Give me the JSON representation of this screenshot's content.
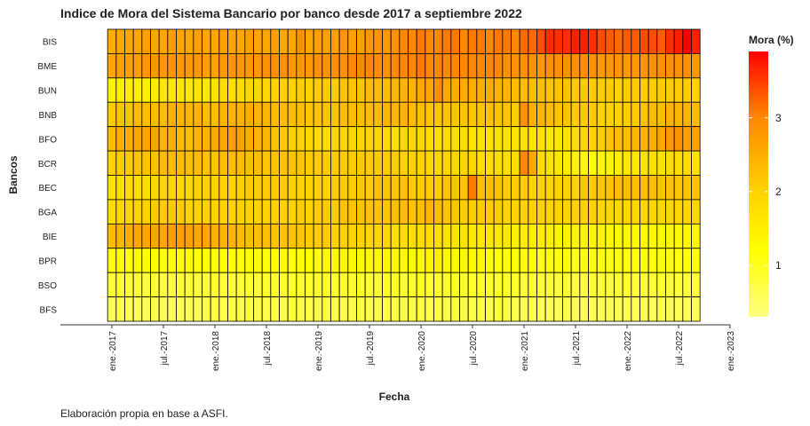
{
  "chart_data": {
    "type": "heatmap",
    "title": "Indice de Mora del Sistema Bancario por banco desde 2017 a septiembre 2022",
    "x_label": "Fecha",
    "y_label": "Bancos",
    "caption": "Elaboración propia en base a ASFI.",
    "legend_title": "Mora (%)",
    "x": [
      "2017-01",
      "2017-02",
      "2017-03",
      "2017-04",
      "2017-05",
      "2017-06",
      "2017-07",
      "2017-08",
      "2017-09",
      "2017-10",
      "2017-11",
      "2017-12",
      "2018-01",
      "2018-02",
      "2018-03",
      "2018-04",
      "2018-05",
      "2018-06",
      "2018-07",
      "2018-08",
      "2018-09",
      "2018-10",
      "2018-11",
      "2018-12",
      "2019-01",
      "2019-02",
      "2019-03",
      "2019-04",
      "2019-05",
      "2019-06",
      "2019-07",
      "2019-08",
      "2019-09",
      "2019-10",
      "2019-11",
      "2019-12",
      "2020-01",
      "2020-02",
      "2020-03",
      "2020-04",
      "2020-05",
      "2020-06",
      "2020-07",
      "2020-08",
      "2020-09",
      "2020-10",
      "2020-11",
      "2020-12",
      "2021-01",
      "2021-02",
      "2021-03",
      "2021-04",
      "2021-05",
      "2021-06",
      "2021-07",
      "2021-08",
      "2021-09",
      "2021-10",
      "2021-11",
      "2021-12",
      "2022-01",
      "2022-02",
      "2022-03",
      "2022-04",
      "2022-05",
      "2022-06",
      "2022-07",
      "2022-08",
      "2022-09"
    ],
    "xlim": [
      "2016-07",
      "2023-01"
    ],
    "xticks": [
      {
        "value": "2017-01",
        "label": "ene.-2017"
      },
      {
        "value": "2017-07",
        "label": "jul.-2017"
      },
      {
        "value": "2018-01",
        "label": "ene.-2018"
      },
      {
        "value": "2018-07",
        "label": "jul.-2018"
      },
      {
        "value": "2019-01",
        "label": "ene.-2019"
      },
      {
        "value": "2019-07",
        "label": "jul.-2019"
      },
      {
        "value": "2020-01",
        "label": "ene.-2020"
      },
      {
        "value": "2020-07",
        "label": "jul.-2020"
      },
      {
        "value": "2021-01",
        "label": "ene.-2021"
      },
      {
        "value": "2021-07",
        "label": "jul.-2021"
      },
      {
        "value": "2022-01",
        "label": "ene.-2022"
      },
      {
        "value": "2022-07",
        "label": "jul.-2022"
      },
      {
        "value": "2023-01",
        "label": "ene.-2023"
      }
    ],
    "colorlim": [
      0.3,
      3.9
    ],
    "colorticks": [
      1,
      2,
      3
    ],
    "colors": [
      "#ffff80",
      "#ffff00",
      "#ffcc00",
      "#ff8800",
      "#ff0000"
    ],
    "series": [
      {
        "name": "BIS",
        "values": [
          2.5,
          2.6,
          2.6,
          2.6,
          2.7,
          2.6,
          2.6,
          2.7,
          2.6,
          2.6,
          2.7,
          2.6,
          2.6,
          2.7,
          2.6,
          2.6,
          2.7,
          2.6,
          2.6,
          2.7,
          2.6,
          2.6,
          2.9,
          2.6,
          2.7,
          2.7,
          2.7,
          2.8,
          2.7,
          2.7,
          2.8,
          2.8,
          2.8,
          2.9,
          3.0,
          3.0,
          3.1,
          3.0,
          3.0,
          3.1,
          3.1,
          3.0,
          3.1,
          3.1,
          3.0,
          3.1,
          3.1,
          3.0,
          3.2,
          3.2,
          3.4,
          3.6,
          3.6,
          3.6,
          3.7,
          3.7,
          3.6,
          3.4,
          3.3,
          3.2,
          3.3,
          3.3,
          3.4,
          3.4,
          3.3,
          3.6,
          3.7,
          3.9,
          3.7
        ]
      },
      {
        "name": "BME",
        "values": [
          2.6,
          2.7,
          2.7,
          2.7,
          2.8,
          2.8,
          2.8,
          2.8,
          2.8,
          2.8,
          2.8,
          2.7,
          2.7,
          2.8,
          2.8,
          2.8,
          2.8,
          2.8,
          2.9,
          2.9,
          2.9,
          2.8,
          2.8,
          2.8,
          2.9,
          2.9,
          2.9,
          2.9,
          3.0,
          3.0,
          3.0,
          2.9,
          2.9,
          3.0,
          3.0,
          3.0,
          3.1,
          3.0,
          3.0,
          3.0,
          3.0,
          3.0,
          3.0,
          3.0,
          3.0,
          3.0,
          2.9,
          2.9,
          2.9,
          2.9,
          2.8,
          2.9,
          2.9,
          2.9,
          2.9,
          2.9,
          2.9,
          2.8,
          2.8,
          2.8,
          2.8,
          2.8,
          2.8,
          2.9,
          2.9,
          2.9,
          2.9,
          2.9,
          2.8
        ]
      },
      {
        "name": "BUN",
        "values": [
          1.4,
          1.5,
          1.5,
          1.5,
          1.5,
          1.5,
          1.6,
          1.6,
          1.6,
          1.6,
          1.7,
          1.6,
          1.7,
          1.8,
          1.8,
          1.8,
          1.9,
          1.9,
          1.9,
          2.0,
          2.0,
          2.0,
          2.1,
          2.0,
          2.1,
          2.1,
          2.1,
          2.2,
          2.2,
          2.2,
          2.3,
          2.3,
          2.3,
          2.4,
          2.4,
          2.4,
          2.6,
          2.6,
          2.9,
          2.6,
          2.5,
          2.5,
          2.5,
          2.5,
          2.5,
          2.4,
          2.4,
          2.3,
          2.3,
          2.3,
          2.3,
          2.2,
          2.2,
          2.2,
          2.1,
          2.1,
          2.1,
          2.1,
          2.1,
          2.0,
          2.1,
          2.1,
          2.1,
          2.1,
          2.1,
          2.1,
          2.1,
          2.1,
          2.0
        ]
      },
      {
        "name": "BNB",
        "values": [
          2.1,
          2.2,
          2.2,
          2.3,
          2.3,
          2.3,
          2.3,
          2.4,
          2.4,
          2.4,
          2.4,
          2.3,
          2.3,
          2.4,
          2.4,
          2.4,
          2.5,
          2.4,
          2.4,
          2.3,
          2.3,
          2.3,
          2.3,
          2.2,
          2.2,
          2.2,
          2.2,
          2.3,
          2.3,
          2.3,
          2.3,
          2.3,
          2.4,
          2.4,
          2.4,
          2.3,
          2.3,
          2.2,
          2.2,
          2.2,
          2.2,
          2.2,
          2.2,
          2.2,
          2.2,
          2.2,
          2.2,
          2.1,
          2.9,
          2.5,
          2.4,
          2.3,
          2.2,
          2.2,
          2.1,
          2.1,
          2.1,
          2.0,
          2.0,
          2.0,
          2.1,
          2.1,
          2.2,
          2.3,
          2.3,
          2.4,
          2.4,
          2.4,
          2.3
        ]
      },
      {
        "name": "BFO",
        "values": [
          2.3,
          2.5,
          2.5,
          2.6,
          2.6,
          2.6,
          2.4,
          2.4,
          2.3,
          2.3,
          2.4,
          2.4,
          2.6,
          2.6,
          2.7,
          2.7,
          2.5,
          2.4,
          2.4,
          2.2,
          2.1,
          2.0,
          2.0,
          1.9,
          1.8,
          1.8,
          1.9,
          1.9,
          1.9,
          1.9,
          1.9,
          1.9,
          1.8,
          1.8,
          1.9,
          1.9,
          1.9,
          1.8,
          1.8,
          1.8,
          1.8,
          1.8,
          1.7,
          1.7,
          1.7,
          1.7,
          1.7,
          1.7,
          1.7,
          1.7,
          1.7,
          1.6,
          1.6,
          1.7,
          1.8,
          1.9,
          2.0,
          2.1,
          2.2,
          2.3,
          2.3,
          2.4,
          2.4,
          2.5,
          2.6,
          2.8,
          2.9,
          2.7,
          2.7
        ]
      },
      {
        "name": "BCR",
        "values": [
          2.0,
          2.1,
          2.1,
          2.2,
          2.2,
          2.2,
          2.3,
          2.3,
          2.3,
          2.3,
          2.3,
          2.2,
          2.2,
          2.3,
          2.3,
          2.3,
          2.3,
          2.3,
          2.2,
          2.2,
          2.2,
          2.2,
          2.2,
          2.1,
          2.1,
          2.1,
          2.1,
          2.1,
          2.1,
          2.1,
          2.1,
          2.1,
          2.1,
          2.1,
          2.0,
          2.0,
          2.0,
          1.9,
          1.9,
          1.9,
          1.9,
          1.9,
          1.9,
          1.8,
          1.8,
          1.8,
          1.8,
          1.8,
          3.0,
          2.6,
          1.8,
          1.7,
          1.6,
          1.5,
          1.4,
          1.3,
          1.2,
          1.3,
          1.4,
          1.5,
          1.6,
          1.6,
          1.7,
          1.7,
          1.7,
          1.8,
          1.8,
          1.8,
          1.7
        ]
      },
      {
        "name": "BEC",
        "values": [
          1.7,
          1.8,
          1.8,
          1.8,
          1.8,
          1.9,
          1.9,
          1.9,
          1.9,
          1.9,
          2.0,
          2.0,
          2.0,
          2.0,
          2.0,
          2.0,
          2.1,
          2.1,
          2.1,
          2.1,
          2.1,
          2.0,
          2.0,
          2.0,
          2.0,
          2.0,
          2.1,
          2.1,
          2.1,
          2.1,
          2.1,
          2.2,
          2.2,
          2.2,
          2.2,
          2.1,
          2.1,
          2.1,
          2.1,
          2.2,
          2.2,
          2.2,
          3.1,
          2.3,
          2.2,
          2.2,
          2.1,
          2.1,
          2.1,
          2.0,
          2.0,
          2.0,
          2.0,
          2.0,
          2.0,
          2.1,
          2.1,
          2.2,
          2.2,
          2.3,
          2.3,
          2.3,
          2.3,
          2.3,
          2.2,
          2.2,
          2.2,
          2.2,
          2.2
        ]
      },
      {
        "name": "BGA",
        "values": [
          1.8,
          1.9,
          1.9,
          2.0,
          2.0,
          2.1,
          2.1,
          2.1,
          2.1,
          2.0,
          2.0,
          2.0,
          2.0,
          2.0,
          2.0,
          2.0,
          2.0,
          2.0,
          2.0,
          2.0,
          2.0,
          2.0,
          2.1,
          2.0,
          2.1,
          2.1,
          2.1,
          2.2,
          2.2,
          2.2,
          2.2,
          2.2,
          2.2,
          2.3,
          2.3,
          2.2,
          2.3,
          2.4,
          2.3,
          2.2,
          2.2,
          2.1,
          2.1,
          2.1,
          2.1,
          2.1,
          2.0,
          2.0,
          2.0,
          2.0,
          2.0,
          2.0,
          2.0,
          2.0,
          2.0,
          2.0,
          2.0,
          1.9,
          1.9,
          1.9,
          1.9,
          1.9,
          1.9,
          1.9,
          1.9,
          1.9,
          1.9,
          1.9,
          1.9
        ]
      },
      {
        "name": "BIE",
        "values": [
          2.3,
          2.4,
          2.5,
          2.6,
          2.6,
          2.6,
          2.6,
          2.7,
          2.7,
          2.7,
          2.6,
          2.6,
          2.5,
          2.4,
          2.4,
          2.3,
          2.3,
          2.3,
          2.3,
          2.2,
          2.2,
          2.2,
          2.2,
          2.1,
          2.1,
          2.1,
          2.0,
          2.0,
          2.0,
          2.0,
          1.9,
          1.9,
          1.9,
          1.8,
          1.8,
          1.8,
          1.8,
          1.8,
          1.8,
          1.7,
          1.7,
          1.7,
          1.6,
          1.6,
          1.6,
          1.6,
          1.6,
          1.5,
          1.5,
          1.5,
          1.5,
          1.5,
          1.4,
          1.4,
          1.4,
          1.4,
          1.4,
          1.4,
          1.3,
          1.3,
          1.3,
          1.3,
          1.3,
          1.3,
          1.3,
          1.3,
          1.3,
          1.3,
          1.3
        ]
      },
      {
        "name": "BPR",
        "values": [
          1.1,
          1.2,
          1.2,
          1.2,
          1.2,
          1.2,
          1.2,
          1.2,
          1.2,
          1.2,
          1.2,
          1.2,
          1.2,
          1.2,
          1.2,
          1.2,
          1.2,
          1.2,
          1.2,
          1.2,
          1.2,
          1.2,
          1.2,
          1.2,
          1.2,
          1.3,
          1.3,
          1.3,
          1.3,
          1.3,
          1.3,
          1.3,
          1.3,
          1.3,
          1.3,
          1.3,
          1.3,
          1.4,
          1.5,
          1.3,
          1.3,
          1.3,
          1.3,
          1.3,
          1.2,
          1.2,
          1.2,
          1.2,
          1.2,
          1.2,
          1.1,
          1.1,
          1.1,
          1.1,
          1.1,
          1.1,
          1.1,
          1.1,
          1.1,
          1.1,
          1.1,
          1.1,
          1.1,
          1.1,
          1.1,
          1.1,
          1.1,
          1.1,
          1.1
        ]
      },
      {
        "name": "BSO",
        "values": [
          0.8,
          0.8,
          0.8,
          0.8,
          0.8,
          0.8,
          0.8,
          0.8,
          0.8,
          0.8,
          0.8,
          0.8,
          0.8,
          0.8,
          0.8,
          0.8,
          0.8,
          0.8,
          0.9,
          0.9,
          0.9,
          0.9,
          0.9,
          0.9,
          0.9,
          0.9,
          0.9,
          0.9,
          0.9,
          0.9,
          0.9,
          0.9,
          0.9,
          0.9,
          0.9,
          0.9,
          0.9,
          0.9,
          0.9,
          0.9,
          0.9,
          0.9,
          0.9,
          0.9,
          0.9,
          0.9,
          0.9,
          0.9,
          0.8,
          0.8,
          0.8,
          0.8,
          0.8,
          0.8,
          0.8,
          0.8,
          0.8,
          0.8,
          0.8,
          0.8,
          0.8,
          0.8,
          0.8,
          0.8,
          0.8,
          0.8,
          0.8,
          0.8,
          0.8
        ]
      },
      {
        "name": "BFS",
        "values": [
          0.6,
          0.6,
          0.6,
          0.6,
          0.6,
          0.6,
          0.6,
          0.6,
          0.6,
          0.6,
          0.6,
          0.6,
          0.7,
          0.7,
          0.7,
          0.7,
          0.7,
          0.7,
          0.7,
          0.7,
          0.7,
          0.7,
          0.7,
          0.7,
          0.7,
          0.7,
          0.7,
          0.7,
          0.7,
          0.7,
          0.7,
          0.7,
          0.7,
          0.7,
          0.7,
          0.7,
          0.7,
          0.7,
          0.7,
          0.7,
          0.7,
          0.7,
          0.7,
          0.7,
          0.7,
          0.7,
          0.7,
          0.7,
          0.6,
          0.6,
          0.6,
          0.6,
          0.6,
          0.6,
          0.6,
          0.6,
          0.6,
          0.6,
          0.6,
          0.6,
          0.6,
          0.6,
          0.6,
          0.6,
          0.6,
          0.6,
          0.6,
          0.6,
          0.6
        ]
      }
    ]
  }
}
